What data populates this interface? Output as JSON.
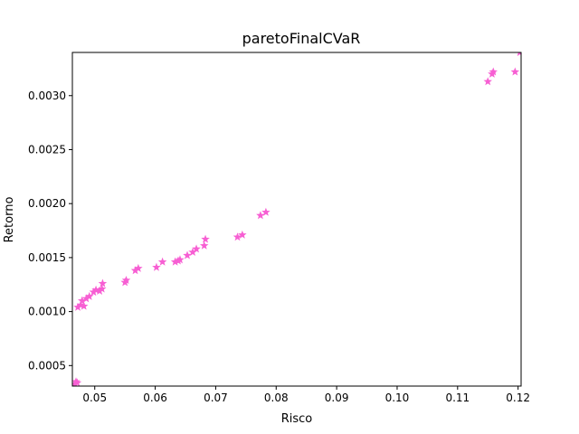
{
  "chart_data": {
    "type": "scatter",
    "title": "paretoFinalCVaR",
    "xlabel": "Risco",
    "ylabel": "Retorno",
    "xlim": [
      0.0463,
      0.1205
    ],
    "ylim": [
      0.00031,
      0.0034
    ],
    "x_ticks": [
      {
        "value": 0.05,
        "label": "0.05"
      },
      {
        "value": 0.06,
        "label": "0.06"
      },
      {
        "value": 0.07,
        "label": "0.07"
      },
      {
        "value": 0.08,
        "label": "0.08"
      },
      {
        "value": 0.09,
        "label": "0.09"
      },
      {
        "value": 0.1,
        "label": "0.10"
      },
      {
        "value": 0.11,
        "label": "0.11"
      },
      {
        "value": 0.12,
        "label": "0.12"
      }
    ],
    "y_ticks": [
      {
        "value": 0.0005,
        "label": "0.0005"
      },
      {
        "value": 0.001,
        "label": "0.0010"
      },
      {
        "value": 0.0015,
        "label": "0.0015"
      },
      {
        "value": 0.002,
        "label": "0.0020"
      },
      {
        "value": 0.0025,
        "label": "0.0025"
      },
      {
        "value": 0.003,
        "label": "0.0030"
      }
    ],
    "grid": false,
    "marker": "star",
    "marker_color": "#f75fd3",
    "points": [
      {
        "x": 0.0467,
        "y": 0.00033
      },
      {
        "x": 0.0469,
        "y": 0.00035
      },
      {
        "x": 0.0471,
        "y": 0.00034
      },
      {
        "x": 0.0472,
        "y": 0.00104
      },
      {
        "x": 0.0477,
        "y": 0.00106
      },
      {
        "x": 0.0479,
        "y": 0.0011
      },
      {
        "x": 0.0482,
        "y": 0.00105
      },
      {
        "x": 0.0486,
        "y": 0.00112
      },
      {
        "x": 0.0491,
        "y": 0.00114
      },
      {
        "x": 0.0498,
        "y": 0.00118
      },
      {
        "x": 0.0502,
        "y": 0.0012
      },
      {
        "x": 0.0508,
        "y": 0.00119
      },
      {
        "x": 0.0512,
        "y": 0.00121
      },
      {
        "x": 0.0513,
        "y": 0.00126
      },
      {
        "x": 0.055,
        "y": 0.00127
      },
      {
        "x": 0.0552,
        "y": 0.00129
      },
      {
        "x": 0.0567,
        "y": 0.00138
      },
      {
        "x": 0.0572,
        "y": 0.0014
      },
      {
        "x": 0.0602,
        "y": 0.00141
      },
      {
        "x": 0.0612,
        "y": 0.00146
      },
      {
        "x": 0.0633,
        "y": 0.00146
      },
      {
        "x": 0.0638,
        "y": 0.00147
      },
      {
        "x": 0.0641,
        "y": 0.00148
      },
      {
        "x": 0.0653,
        "y": 0.00152
      },
      {
        "x": 0.0662,
        "y": 0.00155
      },
      {
        "x": 0.0668,
        "y": 0.00158
      },
      {
        "x": 0.0681,
        "y": 0.00161
      },
      {
        "x": 0.0683,
        "y": 0.00167
      },
      {
        "x": 0.0736,
        "y": 0.00169
      },
      {
        "x": 0.0744,
        "y": 0.00171
      },
      {
        "x": 0.0774,
        "y": 0.00189
      },
      {
        "x": 0.0783,
        "y": 0.00192
      },
      {
        "x": 0.115,
        "y": 0.00313
      },
      {
        "x": 0.1157,
        "y": 0.0032
      },
      {
        "x": 0.1159,
        "y": 0.00322
      },
      {
        "x": 0.1195,
        "y": 0.00322
      },
      {
        "x": 0.1203,
        "y": 0.0034
      }
    ]
  }
}
